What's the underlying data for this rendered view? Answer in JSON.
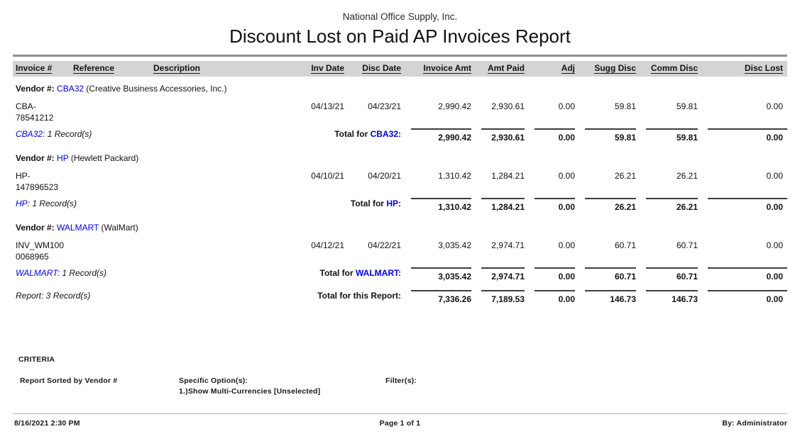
{
  "report": {
    "company": "National Office Supply, Inc.",
    "title": "Discount Lost on Paid AP Invoices Report"
  },
  "labels": {
    "vendor_prefix": "Vendor #:",
    "total_for": "Total for",
    "colon": ":",
    "report_total": "Total for this Report:"
  },
  "columns": [
    "Invoice #",
    "Reference",
    "Description",
    "Inv Date",
    "Disc Date",
    "Invoice Amt",
    "Amt Paid",
    "Adj",
    "Sugg Disc",
    "Comm Disc",
    "Disc Lost"
  ],
  "vendors": [
    {
      "code": "CBA32",
      "name": "(Creative Business Accessories, Inc.)",
      "records_suffix": ": 1 Record(s)",
      "rows": [
        {
          "invoice": [
            "CBA-",
            "78541212"
          ],
          "reference": "",
          "description": "",
          "inv_date": "04/13/21",
          "disc_date": "04/23/21",
          "amounts": [
            "2,990.42",
            "2,930.61",
            "0.00",
            "59.81",
            "59.81",
            "0.00"
          ]
        }
      ],
      "totals": [
        "2,990.42",
        "2,930.61",
        "0.00",
        "59.81",
        "59.81",
        "0.00"
      ]
    },
    {
      "code": "HP",
      "name": "(Hewlett Packard)",
      "records_suffix": ": 1 Record(s)",
      "rows": [
        {
          "invoice": [
            "HP-",
            "147896523"
          ],
          "reference": "",
          "description": "",
          "inv_date": "04/10/21",
          "disc_date": "04/20/21",
          "amounts": [
            "1,310.42",
            "1,284.21",
            "0.00",
            "26.21",
            "26.21",
            "0.00"
          ]
        }
      ],
      "totals": [
        "1,310.42",
        "1,284.21",
        "0.00",
        "26.21",
        "26.21",
        "0.00"
      ]
    },
    {
      "code": "WALMART",
      "name": "(WalMart)",
      "records_suffix": ": 1 Record(s)",
      "rows": [
        {
          "invoice": [
            "INV_WM100",
            "0068965"
          ],
          "reference": "",
          "description": "",
          "inv_date": "04/12/21",
          "disc_date": "04/22/21",
          "amounts": [
            "3,035.42",
            "2,974.71",
            "0.00",
            "60.71",
            "60.71",
            "0.00"
          ]
        }
      ],
      "totals": [
        "3,035.42",
        "2,974.71",
        "0.00",
        "60.71",
        "60.71",
        "0.00"
      ]
    }
  ],
  "report_total": {
    "records": "Report: 3 Record(s)",
    "totals": [
      "7,336.26",
      "7,189.53",
      "0.00",
      "146.73",
      "146.73",
      "0.00"
    ]
  },
  "criteria": {
    "heading": "CRITERIA",
    "sorted_by": "Report Sorted by Vendor #",
    "options_label": "Specific Option(s):",
    "options": [
      "1.)Show Multi-Currencies [Unselected]"
    ],
    "filters_label": "Filter(s):"
  },
  "footer": {
    "datetime": "8/16/2021 2:30 PM",
    "page": "Page 1 of 1",
    "by": "By: Administrator"
  },
  "colors": {
    "link_blue": "#0000ee",
    "header_bg": "#d4d4d4"
  }
}
